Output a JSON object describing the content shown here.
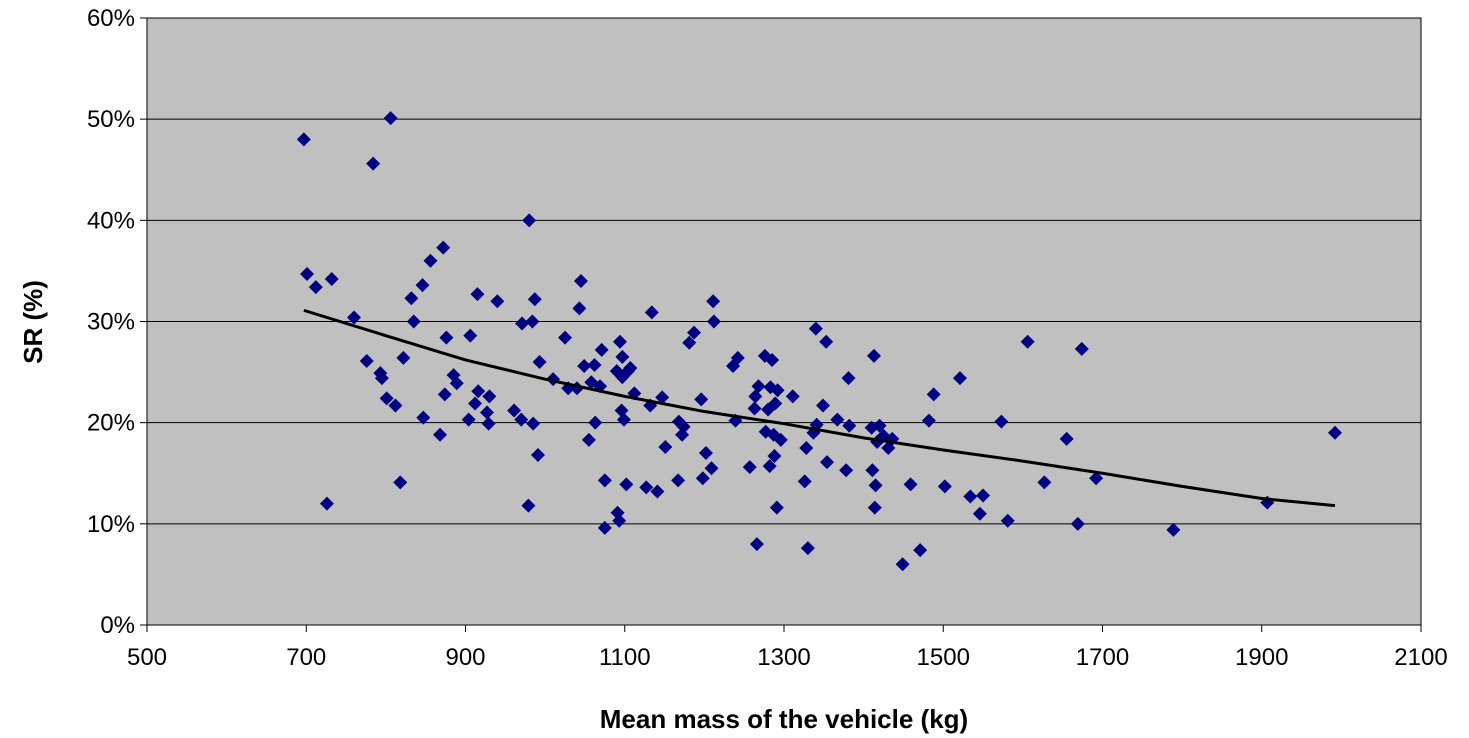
{
  "chart_data": {
    "type": "scatter",
    "title": "",
    "xlabel": "Mean mass of the vehicle (kg)",
    "ylabel": "SR (%)",
    "xlim": [
      500,
      2100
    ],
    "ylim": [
      0,
      60
    ],
    "x_ticks": [
      "500",
      "700",
      "900",
      "1100",
      "1300",
      "1500",
      "1700",
      "1900",
      "2100"
    ],
    "y_ticks": [
      "0%",
      "10%",
      "20%",
      "30%",
      "40%",
      "50%",
      "60%"
    ],
    "grid": "horizontal",
    "legend": "none",
    "colors": {
      "plot_background": "#c0c0c0",
      "marker": "#000080",
      "trendline": "#000000",
      "gridline": "#000000"
    },
    "series": [
      {
        "marker": "diamond",
        "points": [
          [
            697,
            48.0
          ],
          [
            701,
            34.7
          ],
          [
            712,
            33.4
          ],
          [
            726,
            12.0
          ],
          [
            732,
            34.2
          ],
          [
            760,
            30.4
          ],
          [
            776,
            26.1
          ],
          [
            784,
            45.6
          ],
          [
            793,
            24.9
          ],
          [
            795,
            24.4
          ],
          [
            801,
            22.4
          ],
          [
            806,
            50.1
          ],
          [
            812,
            21.7
          ],
          [
            818,
            14.1
          ],
          [
            822,
            26.4
          ],
          [
            832,
            32.3
          ],
          [
            835,
            30.0
          ],
          [
            846,
            33.6
          ],
          [
            847,
            20.5
          ],
          [
            856,
            36.0
          ],
          [
            868,
            18.8
          ],
          [
            872,
            37.3
          ],
          [
            874,
            22.8
          ],
          [
            876,
            28.4
          ],
          [
            885,
            24.7
          ],
          [
            889,
            23.9
          ],
          [
            904,
            20.3
          ],
          [
            906,
            28.6
          ],
          [
            912,
            21.9
          ],
          [
            915,
            32.7
          ],
          [
            916,
            23.1
          ],
          [
            927,
            21.0
          ],
          [
            929,
            19.9
          ],
          [
            930,
            22.6
          ],
          [
            940,
            32.0
          ],
          [
            961,
            21.2
          ],
          [
            970,
            20.3
          ],
          [
            971,
            29.8
          ],
          [
            979,
            11.8
          ],
          [
            980,
            40.0
          ],
          [
            984,
            30.0
          ],
          [
            985,
            19.9
          ],
          [
            987,
            32.2
          ],
          [
            991,
            16.8
          ],
          [
            993,
            26.0
          ],
          [
            1010,
            24.3
          ],
          [
            1025,
            28.4
          ],
          [
            1029,
            23.4
          ],
          [
            1040,
            23.4
          ],
          [
            1043,
            31.3
          ],
          [
            1045,
            34.0
          ],
          [
            1049,
            25.6
          ],
          [
            1055,
            18.3
          ],
          [
            1058,
            24.0
          ],
          [
            1062,
            25.7
          ],
          [
            1063,
            20.0
          ],
          [
            1069,
            23.6
          ],
          [
            1071,
            27.2
          ],
          [
            1075,
            9.6
          ],
          [
            1075,
            14.3
          ],
          [
            1090,
            25.1
          ],
          [
            1091,
            11.1
          ],
          [
            1093,
            10.3
          ],
          [
            1094,
            28.0
          ],
          [
            1096,
            21.2
          ],
          [
            1097,
            24.5
          ],
          [
            1097,
            26.5
          ],
          [
            1099,
            20.3
          ],
          [
            1102,
            13.9
          ],
          [
            1104,
            25.1
          ],
          [
            1107,
            25.4
          ],
          [
            1112,
            22.9
          ],
          [
            1127,
            13.6
          ],
          [
            1132,
            21.7
          ],
          [
            1134,
            30.9
          ],
          [
            1141,
            13.2
          ],
          [
            1147,
            22.5
          ],
          [
            1151,
            17.6
          ],
          [
            1167,
            14.3
          ],
          [
            1168,
            20.1
          ],
          [
            1172,
            18.8
          ],
          [
            1174,
            19.6
          ],
          [
            1181,
            27.9
          ],
          [
            1187,
            28.9
          ],
          [
            1196,
            22.3
          ],
          [
            1198,
            14.5
          ],
          [
            1202,
            17.0
          ],
          [
            1209,
            15.5
          ],
          [
            1211,
            32.0
          ],
          [
            1212,
            30.0
          ],
          [
            1236,
            25.6
          ],
          [
            1239,
            20.2
          ],
          [
            1242,
            26.4
          ],
          [
            1257,
            15.6
          ],
          [
            1263,
            21.4
          ],
          [
            1264,
            22.6
          ],
          [
            1266,
            8.0
          ],
          [
            1268,
            23.6
          ],
          [
            1276,
            26.6
          ],
          [
            1277,
            19.1
          ],
          [
            1280,
            21.3
          ],
          [
            1282,
            15.7
          ],
          [
            1283,
            23.5
          ],
          [
            1285,
            26.2
          ],
          [
            1287,
            18.8
          ],
          [
            1288,
            16.7
          ],
          [
            1289,
            21.9
          ],
          [
            1291,
            11.6
          ],
          [
            1292,
            23.2
          ],
          [
            1296,
            18.3
          ],
          [
            1311,
            22.6
          ],
          [
            1326,
            14.2
          ],
          [
            1328,
            17.5
          ],
          [
            1330,
            7.6
          ],
          [
            1337,
            19.0
          ],
          [
            1340,
            29.3
          ],
          [
            1341,
            19.8
          ],
          [
            1349,
            21.7
          ],
          [
            1353,
            28.0
          ],
          [
            1354,
            16.1
          ],
          [
            1367,
            20.3
          ],
          [
            1378,
            15.3
          ],
          [
            1381,
            24.4
          ],
          [
            1382,
            19.7
          ],
          [
            1410,
            19.5
          ],
          [
            1411,
            15.3
          ],
          [
            1413,
            26.6
          ],
          [
            1414,
            11.6
          ],
          [
            1415,
            13.8
          ],
          [
            1417,
            18.1
          ],
          [
            1420,
            19.7
          ],
          [
            1425,
            18.7
          ],
          [
            1431,
            17.5
          ],
          [
            1436,
            18.4
          ],
          [
            1449,
            6.0
          ],
          [
            1459,
            13.9
          ],
          [
            1471,
            7.4
          ],
          [
            1482,
            20.2
          ],
          [
            1488,
            22.8
          ],
          [
            1502,
            13.7
          ],
          [
            1521,
            24.4
          ],
          [
            1534,
            12.7
          ],
          [
            1546,
            11.0
          ],
          [
            1550,
            12.8
          ],
          [
            1573,
            20.1
          ],
          [
            1581,
            10.3
          ],
          [
            1606,
            28.0
          ],
          [
            1627,
            14.1
          ],
          [
            1655,
            18.4
          ],
          [
            1669,
            10.0
          ],
          [
            1674,
            27.3
          ],
          [
            1692,
            14.5
          ],
          [
            1789,
            9.4
          ],
          [
            1907,
            12.1
          ],
          [
            1992,
            19.0
          ]
        ]
      }
    ],
    "trendline": {
      "points": [
        [
          697,
          31.1
        ],
        [
          800,
          28.6
        ],
        [
          900,
          26.2
        ],
        [
          1000,
          24.3
        ],
        [
          1100,
          22.6
        ],
        [
          1200,
          21.1
        ],
        [
          1300,
          19.9
        ],
        [
          1400,
          18.5
        ],
        [
          1500,
          17.3
        ],
        [
          1600,
          16.2
        ],
        [
          1700,
          15.0
        ],
        [
          1800,
          13.7
        ],
        [
          1900,
          12.5
        ],
        [
          1992,
          11.8
        ]
      ]
    }
  }
}
